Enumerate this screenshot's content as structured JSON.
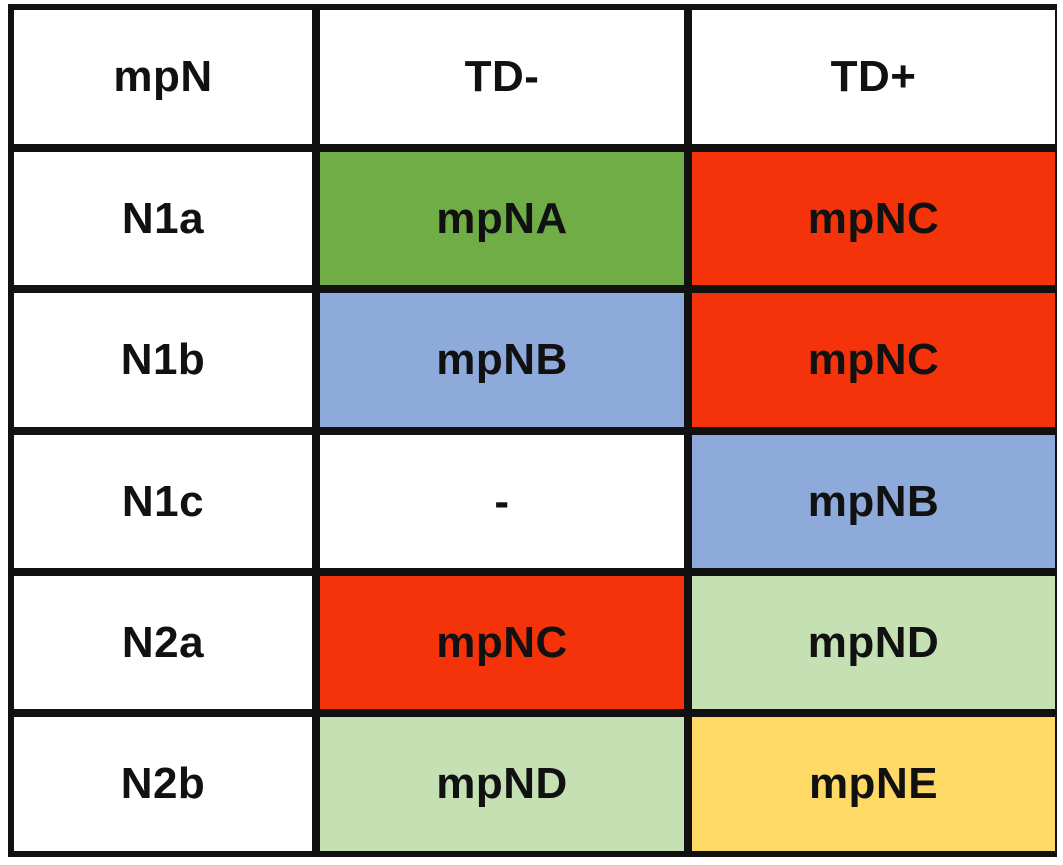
{
  "header": {
    "col0": "mpN",
    "col1": "TD-",
    "col2": "TD+"
  },
  "rows": [
    {
      "label": "N1a",
      "td_minus": "mpNA",
      "td_plus": "mpNC"
    },
    {
      "label": "N1b",
      "td_minus": "mpNB",
      "td_plus": "mpNC"
    },
    {
      "label": "N1c",
      "td_minus": "-",
      "td_plus": "mpNB"
    },
    {
      "label": "N2a",
      "td_minus": "mpNC",
      "td_plus": "mpND"
    },
    {
      "label": "N2b",
      "td_minus": "mpND",
      "td_plus": "mpNE"
    }
  ],
  "colors": {
    "mpNA": "#70ad47",
    "mpNB": "#8eaadb",
    "mpNC": "#f4330b",
    "mpND": "#c5e0b3",
    "mpNE": "#ffd966",
    "-": "#ffffff",
    "border": "#111111",
    "label_bg": "#ffffff"
  }
}
